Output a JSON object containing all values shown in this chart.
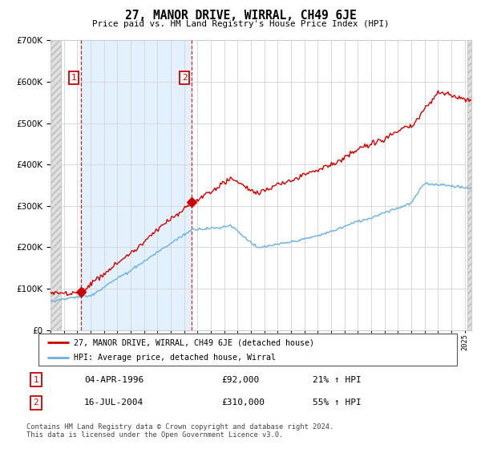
{
  "title": "27, MANOR DRIVE, WIRRAL, CH49 6JE",
  "subtitle": "Price paid vs. HM Land Registry's House Price Index (HPI)",
  "sale1_year": 1996.25,
  "sale1_price": 92000,
  "sale2_year": 2004.54,
  "sale2_price": 310000,
  "hpi_color": "#6ab0e0",
  "price_color": "#cc0000",
  "grid_color": "#d8d8d8",
  "bg_color": "#f0f4f8",
  "hatch_bg": "#d8d8d8",
  "shade_between_color": "#ddeeff",
  "legend1": "27, MANOR DRIVE, WIRRAL, CH49 6JE (detached house)",
  "legend2": "HPI: Average price, detached house, Wirral",
  "table_row1_num": "1",
  "table_row1_date": "04-APR-1996",
  "table_row1_price": "£92,000",
  "table_row1_hpi": "21% ↑ HPI",
  "table_row2_num": "2",
  "table_row2_date": "16-JUL-2004",
  "table_row2_price": "£310,000",
  "table_row2_hpi": "55% ↑ HPI",
  "footer": "Contains HM Land Registry data © Crown copyright and database right 2024.\nThis data is licensed under the Open Government Licence v3.0.",
  "ylim_max": 700000,
  "ylim_min": 0,
  "xmin": 1994,
  "xmax": 2025.5
}
